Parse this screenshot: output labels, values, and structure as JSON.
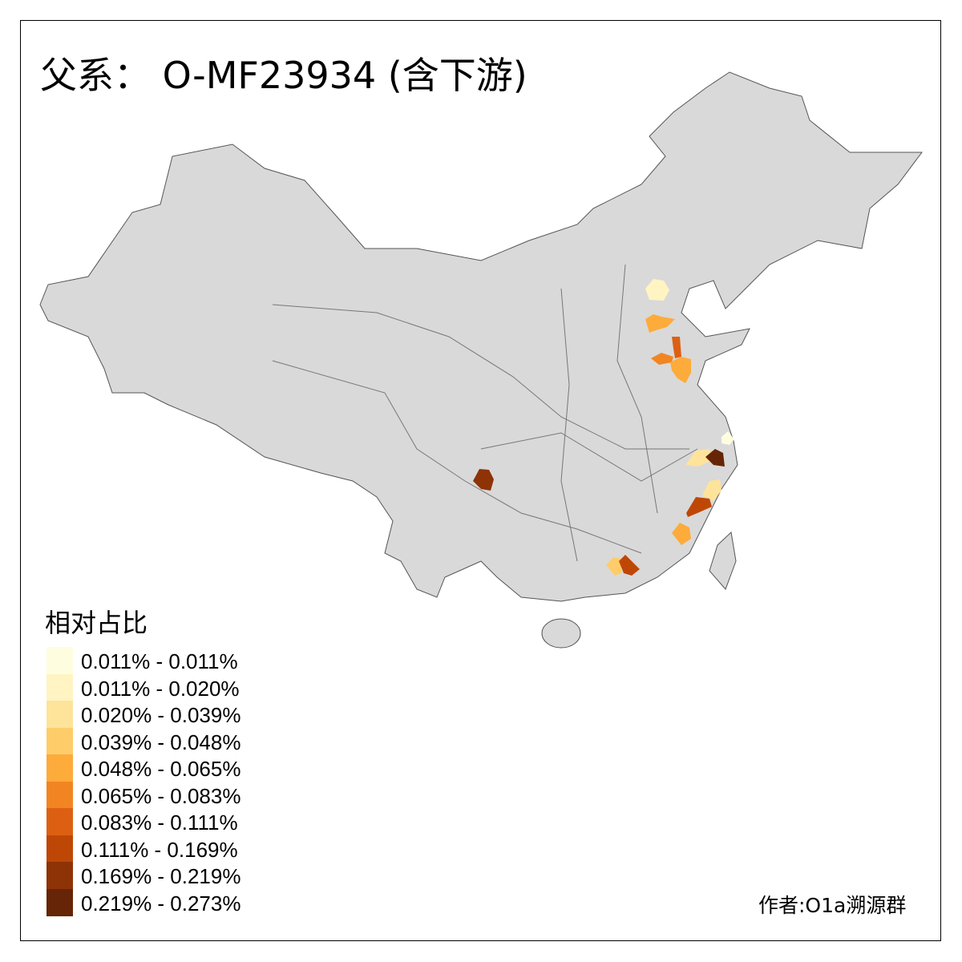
{
  "title": "父系： O-MF23934 (含下游)",
  "legend": {
    "title": "相对占比",
    "items": [
      {
        "label": "0.011% - 0.011%",
        "color": "#fffde0"
      },
      {
        "label": "0.011% - 0.020%",
        "color": "#fff4c2"
      },
      {
        "label": "0.020% - 0.039%",
        "color": "#fee39b"
      },
      {
        "label": "0.039% - 0.048%",
        "color": "#fecd69"
      },
      {
        "label": "0.048% - 0.065%",
        "color": "#fdab3b"
      },
      {
        "label": "0.065% - 0.083%",
        "color": "#f28522"
      },
      {
        "label": "0.083% - 0.111%",
        "color": "#dd6012"
      },
      {
        "label": "0.111% - 0.169%",
        "color": "#bf4706"
      },
      {
        "label": "0.169% - 0.219%",
        "color": "#8e3306"
      },
      {
        "label": "0.219% - 0.273%",
        "color": "#662506"
      }
    ]
  },
  "author": "作者:O1a溯源群",
  "colors": {
    "base_fill": "#d9d9d9",
    "border": "#666666"
  }
}
